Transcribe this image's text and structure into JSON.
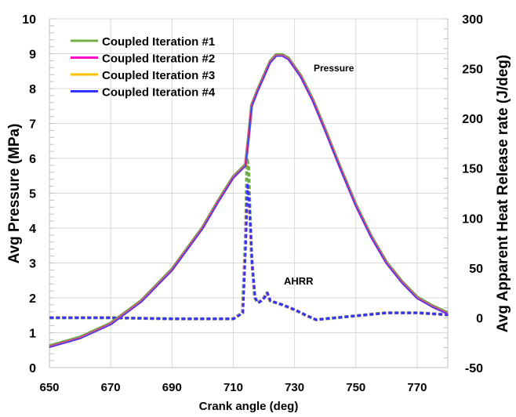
{
  "chart_data": {
    "type": "line",
    "xlabel": "Crank angle (deg)",
    "ylabel_left": "Avg  Pressure  (MPa)",
    "ylabel_right": "Avg Apparent Heat Release rate (J/deg)",
    "xlim": [
      650,
      780
    ],
    "ylim_left": [
      0,
      10
    ],
    "ylim_right": [
      -50,
      300
    ],
    "xticks": [
      650,
      670,
      690,
      710,
      730,
      750,
      770
    ],
    "yticks_left": [
      0,
      1,
      2,
      3,
      4,
      5,
      6,
      7,
      8,
      9,
      10
    ],
    "yticks_right": [
      -50,
      0,
      50,
      100,
      150,
      200,
      250,
      300
    ],
    "grid": true,
    "legend_position": "top-left",
    "annotations": [
      "Pressure",
      "AHRR"
    ],
    "series": [
      {
        "name": "Coupled Iteration #1",
        "color": "#70AD47",
        "axis": "left"
      },
      {
        "name": "Coupled Iteration #2",
        "color": "#FF00CC",
        "axis": "left"
      },
      {
        "name": "Coupled Iteration #3",
        "color": "#FFC000",
        "axis": "left"
      },
      {
        "name": "Coupled Iteration #4",
        "color": "#3333FF",
        "axis": "left"
      }
    ],
    "pressure": {
      "x": [
        650,
        660,
        670,
        680,
        690,
        700,
        705,
        710,
        714,
        715,
        716,
        718,
        720,
        722,
        724,
        726,
        728,
        732,
        736,
        740,
        745,
        750,
        755,
        760,
        765,
        770,
        775,
        780
      ],
      "y": [
        0.6,
        0.85,
        1.25,
        1.9,
        2.8,
        4.0,
        4.75,
        5.45,
        5.8,
        6.6,
        7.5,
        7.95,
        8.35,
        8.75,
        8.95,
        8.95,
        8.85,
        8.35,
        7.65,
        6.8,
        5.7,
        4.65,
        3.75,
        3.0,
        2.45,
        2.0,
        1.75,
        1.55
      ]
    },
    "ahrr": {
      "x": [
        650,
        670,
        690,
        705,
        710,
        713,
        714,
        714.5,
        715,
        715.5,
        716,
        717,
        718,
        719,
        720,
        721,
        722,
        724,
        726,
        730,
        734,
        737,
        740,
        750,
        760,
        770,
        780
      ],
      "y_iteration_1": [
        0,
        0,
        -1,
        -1,
        -1,
        5,
        80,
        160,
        150,
        100,
        60,
        20,
        15,
        17,
        20,
        25,
        17,
        15,
        13,
        8,
        2,
        -2,
        -1,
        2,
        5,
        5,
        3
      ],
      "y_other_iterations": [
        0,
        0,
        -1,
        -1,
        -1,
        5,
        80,
        135,
        120,
        90,
        55,
        20,
        15,
        17,
        20,
        25,
        17,
        15,
        13,
        8,
        2,
        -2,
        -1,
        2,
        5,
        5,
        3
      ]
    }
  }
}
